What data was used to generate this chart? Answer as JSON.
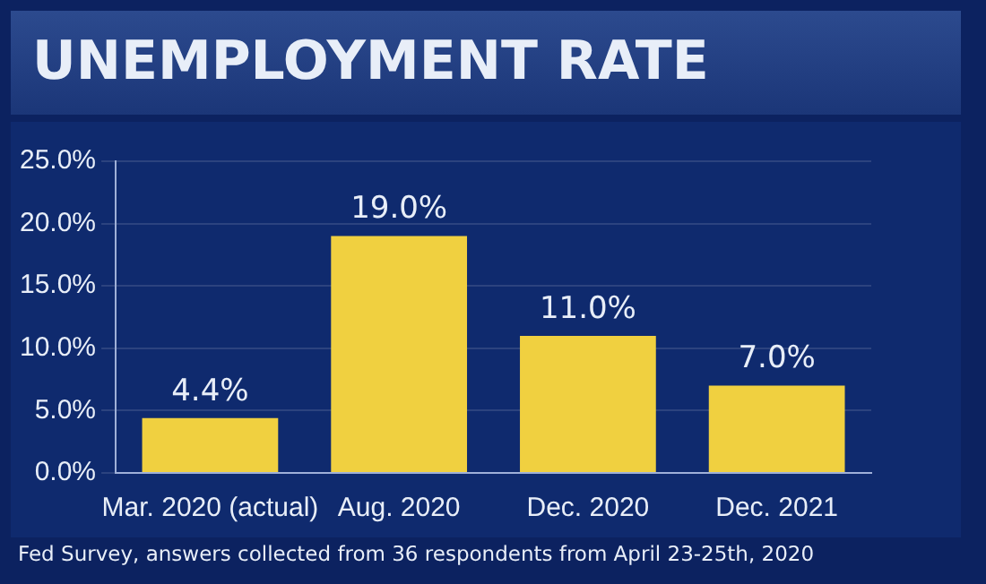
{
  "chart_data": {
    "type": "bar",
    "title": "UNEMPLOYMENT RATE",
    "categories": [
      "Mar. 2020 (actual)",
      "Aug. 2020",
      "Dec. 2020",
      "Dec. 2021"
    ],
    "values": [
      4.4,
      19.0,
      11.0,
      7.0
    ],
    "value_labels": [
      "4.4%",
      "19.0%",
      "11.0%",
      "7.0%"
    ],
    "color": "#f0d040",
    "ylim": [
      0,
      25
    ],
    "yticks": [
      {
        "value": 0,
        "label": "0.0%"
      },
      {
        "value": 5,
        "label": "5.0%"
      },
      {
        "value": 10,
        "label": "10.0%"
      },
      {
        "value": 15,
        "label": "15.0%"
      },
      {
        "value": 20,
        "label": "20.0%"
      },
      {
        "value": 25,
        "label": "25.0%"
      }
    ],
    "grid": "y",
    "annotations": [
      "Fed Survey, answers collected from 36 respondents from April 23-25th, 2020"
    ]
  }
}
